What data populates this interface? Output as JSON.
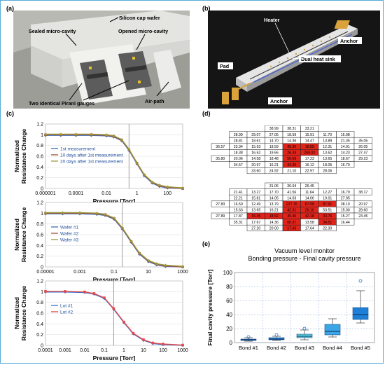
{
  "panels": {
    "a": "(a)",
    "b": "(b)",
    "c": "(c)",
    "d": "(d)",
    "e": "(e)"
  },
  "panel_a": {
    "labels": [
      "Silicon cap wafer",
      "Sealed micro-cavity",
      "Opened micro-cavity",
      "Two identical Pirani gauges",
      "Air-path"
    ]
  },
  "panel_b": {
    "labels": [
      "Heater",
      "Pad",
      "Anchor",
      "Dual heat sink",
      "Anchor"
    ]
  },
  "colors": {
    "blue": "#3a6fc4",
    "brown": "#a0523a",
    "olive": "#9c9a3a",
    "red": "#e8484b",
    "pink": "#d96b8a",
    "box": "#2a8ee0",
    "cyan": "#5fd3e0"
  },
  "chart_data": [
    {
      "type": "line",
      "panel": "c-top",
      "xlabel": "Pressure [Torr]",
      "ylabel": "Normalized Resistance Change",
      "xticks": [
        "0.000001",
        "0.0001",
        "0.01",
        "1",
        "100"
      ],
      "yticks": [
        "0",
        "0.2",
        "0.4",
        "0.6",
        "0.8",
        "1",
        "1.2"
      ],
      "xscale": "log",
      "xlim": [
        1e-06,
        1000
      ],
      "ylim": [
        0,
        1.2
      ],
      "series": [
        {
          "name": "1st measurement",
          "color": "#3a6fc4"
        },
        {
          "name": "10 days after 1st measurement",
          "color": "#a0523a"
        },
        {
          "name": "20 days after 1st measurement",
          "color": "#9c9a3a"
        }
      ],
      "x": [
        1e-06,
        1e-05,
        0.0001,
        0.001,
        0.01,
        0.03,
        0.1,
        0.3,
        1,
        3,
        10,
        30,
        100,
        1000
      ],
      "y": [
        1.0,
        1.0,
        1.0,
        1.0,
        0.99,
        0.97,
        0.9,
        0.72,
        0.47,
        0.25,
        0.11,
        0.05,
        0.02,
        0.0
      ]
    },
    {
      "type": "line",
      "panel": "c-middle",
      "xlabel": "Pressure [Torr]",
      "ylabel": "Normalized Resistance Change",
      "xticks": [
        "0.00001",
        "0.001",
        "0.1",
        "10",
        "1000"
      ],
      "yticks": [
        "0",
        "0.2",
        "0.4",
        "0.6",
        "0.8",
        "1",
        "1.2"
      ],
      "xscale": "log",
      "xlim": [
        1e-05,
        1000
      ],
      "ylim": [
        0,
        1.2
      ],
      "series": [
        {
          "name": "Wafer #1",
          "color": "#3a6fc4"
        },
        {
          "name": "Wafer #2",
          "color": "#a0523a"
        },
        {
          "name": "Wafer #3",
          "color": "#9c9a3a"
        }
      ],
      "x": [
        1e-05,
        0.0001,
        0.001,
        0.01,
        0.03,
        0.1,
        0.3,
        1,
        3,
        10,
        30,
        100,
        1000
      ],
      "y": [
        1.0,
        1.0,
        1.0,
        0.99,
        0.97,
        0.9,
        0.72,
        0.47,
        0.25,
        0.11,
        0.05,
        0.02,
        0.0
      ]
    },
    {
      "type": "line",
      "panel": "c-bottom",
      "xlabel": "Pressure [Torr]",
      "ylabel": "Normalized Resistance Change",
      "xticks": [
        "0.0001",
        "0.001",
        "0.01",
        "0.1",
        "1",
        "10",
        "100",
        "1000"
      ],
      "yticks": [
        "0",
        "0.2",
        "0.4",
        "0.6",
        "0.8",
        "1",
        "1.2"
      ],
      "xscale": "log",
      "xlim": [
        0.0001,
        1000
      ],
      "ylim": [
        0,
        1.2
      ],
      "series": [
        {
          "name": "Lot #1",
          "color": "#3a6fc4"
        },
        {
          "name": "Lot #2",
          "color": "#e8484b"
        }
      ],
      "x": [
        0.0001,
        0.001,
        0.01,
        0.03,
        0.1,
        0.3,
        1,
        3,
        10,
        30,
        100,
        1000
      ],
      "y": [
        1.0,
        1.0,
        0.99,
        0.96,
        0.88,
        0.68,
        0.43,
        0.22,
        0.1,
        0.04,
        0.02,
        0.0
      ]
    },
    {
      "type": "box",
      "panel": "e",
      "title": "Vacuum level monitor",
      "subtitle": "Bonding pressure - Final cavity pressure",
      "ylabel": "Final cavity pressure [Torr]",
      "yticks": [
        "0",
        "20",
        "40",
        "60",
        "80",
        "100"
      ],
      "ylim": [
        0,
        100
      ],
      "categories": [
        "Bond #1",
        "Bond #2",
        "Bond #3",
        "Bond #4",
        "Bond #5"
      ],
      "boxes": [
        {
          "min": 2,
          "q1": 3,
          "median": 4,
          "q3": 5,
          "max": 7,
          "outliers": [
            8
          ]
        },
        {
          "min": 3,
          "q1": 4,
          "median": 5,
          "q3": 7,
          "max": 9,
          "outliers": [
            11
          ]
        },
        {
          "min": 4,
          "q1": 7,
          "median": 9,
          "q3": 12,
          "max": 18,
          "outliers": [
            20
          ]
        },
        {
          "min": 8,
          "q1": 11,
          "median": 16,
          "q3": 26,
          "max": 34,
          "outliers": []
        },
        {
          "min": 28,
          "q1": 33,
          "median": 40,
          "q3": 50,
          "max": 74,
          "outliers": [
            88
          ]
        }
      ]
    },
    {
      "type": "table",
      "panel": "d-top",
      "rows": [
        [
          "",
          "",
          "",
          "38.99",
          "38.31",
          "33.21",
          "",
          "",
          ""
        ],
        [
          "",
          "28.99",
          "29.07",
          "27.05",
          "18.59",
          "15.91",
          "11.70",
          "15.98",
          ""
        ],
        [
          "",
          "28.81",
          "18.61",
          "14.70",
          "14.36",
          "14.47",
          "13.89",
          "21.35",
          "35.05"
        ],
        [
          "36.57",
          "23.34",
          "15.53",
          "18.59",
          "45.30",
          "18.85",
          "12.31",
          "14.91",
          "26.05"
        ],
        [
          "",
          "18.38",
          "16.52",
          "19.66",
          "26.34",
          "269.02",
          "13.62",
          "14.23",
          "27.47"
        ],
        [
          "35.80",
          "20.06",
          "14.58",
          "18.48",
          "56.69",
          "17.23",
          "13.65",
          "18.67",
          "29.23"
        ],
        [
          "",
          "34.57",
          "20.97",
          "16.21",
          "44.36",
          "16.12",
          "18.05",
          "16.70",
          ""
        ],
        [
          "",
          "",
          "33.60",
          "24.92",
          "21.10",
          "22.97",
          "28.06",
          "",
          ""
        ]
      ],
      "highlights": [
        [
          3,
          4
        ],
        [
          3,
          5
        ],
        [
          4,
          4
        ],
        [
          4,
          5
        ],
        [
          5,
          4
        ],
        [
          6,
          4
        ]
      ]
    },
    {
      "type": "table",
      "panel": "d-bottom",
      "rows": [
        [
          "",
          "",
          "",
          "31.06",
          "30.64",
          "26.45",
          "",
          "",
          ""
        ],
        [
          "",
          "21.41",
          "13.27",
          "17.70",
          "41.56",
          "11.64",
          "12.27",
          "16.79",
          "38.17"
        ],
        [
          "",
          "22.21",
          "15.81",
          "14.05",
          "14.03",
          "14.06",
          "19.01",
          "27.95",
          ""
        ],
        [
          "27.83",
          "16.50",
          "12.49",
          "13.79",
          "227.76",
          "67.58",
          "87.91",
          "38.10",
          "20.97"
        ],
        [
          "",
          "15.63",
          "13.65",
          "16.21",
          "42.31",
          "26.10",
          "53.51",
          "15.00",
          "28.60"
        ],
        [
          "27.89",
          "17.87",
          "15.35",
          "18.52",
          "45.40",
          "42.18",
          "33.76",
          "15.27",
          "23.45"
        ],
        [
          "",
          "35.31",
          "17.67",
          "14.36",
          "60.37",
          "13.58",
          "34.51",
          "16.44",
          ""
        ],
        [
          "",
          "",
          "27.20",
          "20.00",
          "17.43",
          "17.64",
          "22.30",
          "",
          ""
        ]
      ],
      "highlights": [
        [
          3,
          4
        ],
        [
          3,
          5
        ],
        [
          3,
          6
        ],
        [
          4,
          4
        ],
        [
          4,
          5
        ],
        [
          5,
          2
        ],
        [
          5,
          3
        ],
        [
          5,
          4
        ],
        [
          5,
          5
        ],
        [
          5,
          6
        ],
        [
          6,
          4
        ],
        [
          6,
          6
        ],
        [
          7,
          4
        ]
      ]
    }
  ]
}
